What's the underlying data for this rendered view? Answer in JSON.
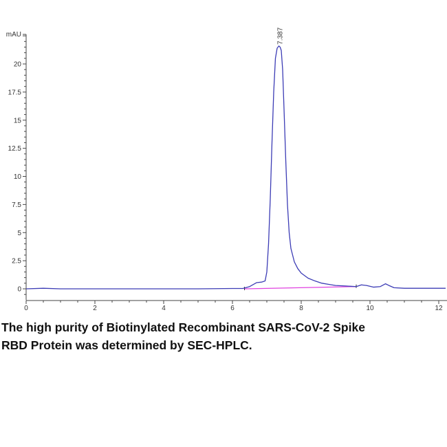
{
  "chart_data": {
    "type": "line",
    "title": "",
    "xlabel": "",
    "ylabel": "mAU",
    "xlim": [
      0,
      12.2
    ],
    "ylim": [
      -1,
      22.5
    ],
    "x_ticks": [
      "0",
      "2",
      "4",
      "6",
      "8",
      "10",
      "12"
    ],
    "y_ticks": [
      "0",
      "2.5",
      "5",
      "7.5",
      "10",
      "12.5",
      "15",
      "17.5",
      "20"
    ],
    "grid": false,
    "series": [
      {
        "color": "#3b3bb5",
        "x": [
          0,
          0.5,
          1,
          2,
          3,
          4,
          5,
          6,
          6.3,
          6.5,
          6.7,
          6.85,
          6.95,
          7.0,
          7.05,
          7.1,
          7.15,
          7.2,
          7.25,
          7.3,
          7.35,
          7.387,
          7.42,
          7.46,
          7.5,
          7.55,
          7.6,
          7.65,
          7.7,
          7.8,
          7.9,
          8.0,
          8.2,
          8.4,
          8.6,
          8.8,
          9.0,
          9.3,
          9.6,
          9.75,
          9.9,
          10.1,
          10.3,
          10.45,
          10.55,
          10.7,
          11,
          11.5,
          12,
          12.2
        ],
        "y": [
          0,
          0.05,
          0,
          0,
          0,
          0,
          0,
          0.03,
          0.03,
          0.2,
          0.55,
          0.6,
          0.7,
          1.5,
          4,
          8,
          13,
          17.5,
          20.5,
          21.4,
          21.6,
          21.5,
          21.2,
          19.5,
          16,
          11.5,
          7.5,
          5,
          3.6,
          2.4,
          1.8,
          1.4,
          0.95,
          0.7,
          0.5,
          0.4,
          0.3,
          0.25,
          0.2,
          0.35,
          0.3,
          0.15,
          0.2,
          0.45,
          0.3,
          0.1,
          0.05,
          0.05,
          0.05,
          0.05
        ]
      }
    ],
    "baseline": {
      "color": "#e040e0",
      "x": [
        6.35,
        9.6
      ],
      "y": [
        0.0,
        0.2
      ]
    },
    "annotations": [
      {
        "text": "7.387",
        "x": 7.387,
        "y": 21.6
      }
    ]
  },
  "caption": {
    "line1": "The high purity of Biotinylated Recombinant SARS-CoV-2 Spike",
    "line2": "RBD Protein was determined by SEC-HPLC."
  }
}
